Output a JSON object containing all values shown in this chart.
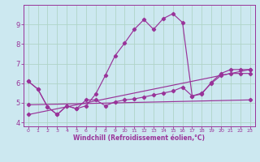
{
  "title": "",
  "xlabel": "Windchill (Refroidissement éolien,°C)",
  "background_color": "#cce8f0",
  "grid_color": "#b0d4c8",
  "line_color": "#993399",
  "xlim": [
    -0.5,
    23.5
  ],
  "ylim": [
    3.8,
    10.0
  ],
  "yticks": [
    4,
    5,
    6,
    7,
    8,
    9
  ],
  "xticks": [
    0,
    1,
    2,
    3,
    4,
    5,
    6,
    7,
    8,
    9,
    10,
    11,
    12,
    13,
    14,
    15,
    16,
    17,
    18,
    19,
    20,
    21,
    22,
    23
  ],
  "lines": [
    {
      "x": [
        0,
        1,
        2,
        3,
        4,
        5,
        6,
        7,
        8,
        9,
        10,
        11,
        12,
        13,
        14,
        15,
        16,
        17,
        18,
        19,
        20,
        21,
        22,
        23
      ],
      "y": [
        6.1,
        5.7,
        4.8,
        4.4,
        4.85,
        4.7,
        4.85,
        5.45,
        6.4,
        7.4,
        8.05,
        8.75,
        9.25,
        8.75,
        9.3,
        9.55,
        9.1,
        5.35,
        5.45,
        6.05,
        6.5,
        6.7,
        6.7,
        6.7
      ]
    },
    {
      "x": [
        0,
        1,
        2,
        3,
        4,
        5,
        6,
        7,
        8,
        9,
        10,
        11,
        12,
        13,
        14,
        15,
        16,
        17,
        18,
        19,
        20,
        21,
        22,
        23
      ],
      "y": [
        6.1,
        5.7,
        4.8,
        4.4,
        4.85,
        4.7,
        5.15,
        5.15,
        4.85,
        5.05,
        5.15,
        5.2,
        5.3,
        5.4,
        5.5,
        5.6,
        5.8,
        5.35,
        5.5,
        6.0,
        6.4,
        6.5,
        6.5,
        6.5
      ]
    },
    {
      "x": [
        0,
        23
      ],
      "y": [
        4.9,
        5.15
      ]
    },
    {
      "x": [
        0,
        23
      ],
      "y": [
        4.4,
        6.7
      ]
    }
  ],
  "xlabel_fontsize": 5.5,
  "ytick_fontsize": 6.0,
  "xtick_fontsize": 4.5
}
